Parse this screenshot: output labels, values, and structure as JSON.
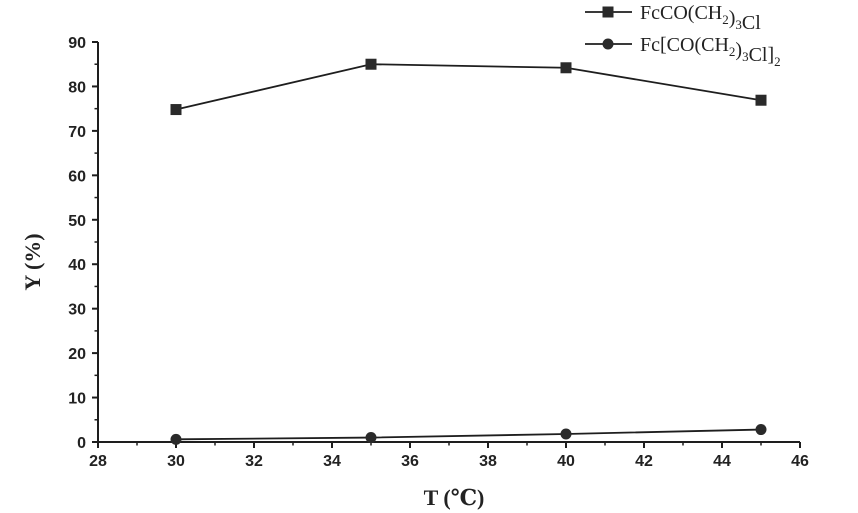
{
  "chart_data": {
    "type": "line",
    "xlabel": "T (℃)",
    "ylabel": "Y (%)",
    "xlim": [
      28,
      46
    ],
    "ylim": [
      0,
      90
    ],
    "xticks": [
      28,
      30,
      32,
      34,
      36,
      38,
      40,
      42,
      44,
      46
    ],
    "yticks": [
      0,
      10,
      20,
      30,
      40,
      50,
      60,
      70,
      80,
      90
    ],
    "x": [
      30,
      35,
      40,
      45
    ],
    "series": [
      {
        "name": "FcCO(CH2)3Cl",
        "marker": "square",
        "values": [
          74.8,
          85.0,
          84.2,
          76.9
        ]
      },
      {
        "name": "Fc[CO(CH2)3Cl]2",
        "marker": "circle",
        "values": [
          0.6,
          1.0,
          1.8,
          2.8
        ]
      }
    ],
    "legend_position": "top-right",
    "grid": false
  }
}
